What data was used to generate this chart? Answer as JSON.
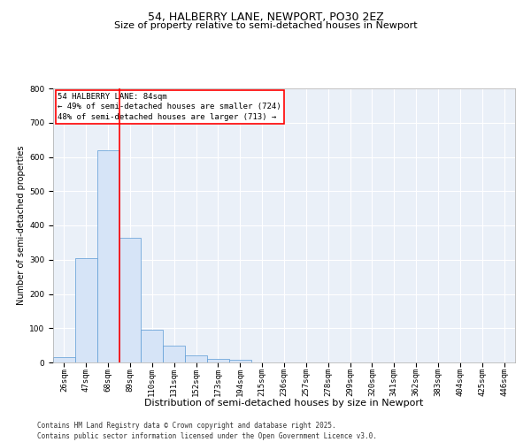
{
  "title1": "54, HALBERRY LANE, NEWPORT, PO30 2EZ",
  "title2": "Size of property relative to semi-detached houses in Newport",
  "xlabel": "Distribution of semi-detached houses by size in Newport",
  "ylabel": "Number of semi-detached properties",
  "annotation_title": "54 HALBERRY LANE: 84sqm",
  "annotation_line1": "← 49% of semi-detached houses are smaller (724)",
  "annotation_line2": "48% of semi-detached houses are larger (713) →",
  "footer1": "Contains HM Land Registry data © Crown copyright and database right 2025.",
  "footer2": "Contains public sector information licensed under the Open Government Licence v3.0.",
  "categories": [
    "26sqm",
    "47sqm",
    "68sqm",
    "89sqm",
    "110sqm",
    "131sqm",
    "152sqm",
    "173sqm",
    "194sqm",
    "215sqm",
    "236sqm",
    "257sqm",
    "278sqm",
    "299sqm",
    "320sqm",
    "341sqm",
    "362sqm",
    "383sqm",
    "404sqm",
    "425sqm",
    "446sqm"
  ],
  "values": [
    15,
    305,
    620,
    365,
    95,
    48,
    20,
    10,
    8,
    1,
    0,
    0,
    0,
    0,
    0,
    0,
    0,
    0,
    0,
    0,
    0
  ],
  "bar_color": "#d6e4f7",
  "bar_edge_color": "#5b9bd5",
  "vline_color": "red",
  "annotation_box_color": "red",
  "background_color": "#eaf0f8",
  "ylim": [
    0,
    800
  ],
  "yticks": [
    0,
    100,
    200,
    300,
    400,
    500,
    600,
    700,
    800
  ],
  "grid_color": "#ffffff",
  "title1_fontsize": 9,
  "title2_fontsize": 8,
  "xlabel_fontsize": 8,
  "ylabel_fontsize": 7,
  "tick_fontsize": 6.5,
  "annotation_fontsize": 6.5,
  "footer_fontsize": 5.5
}
